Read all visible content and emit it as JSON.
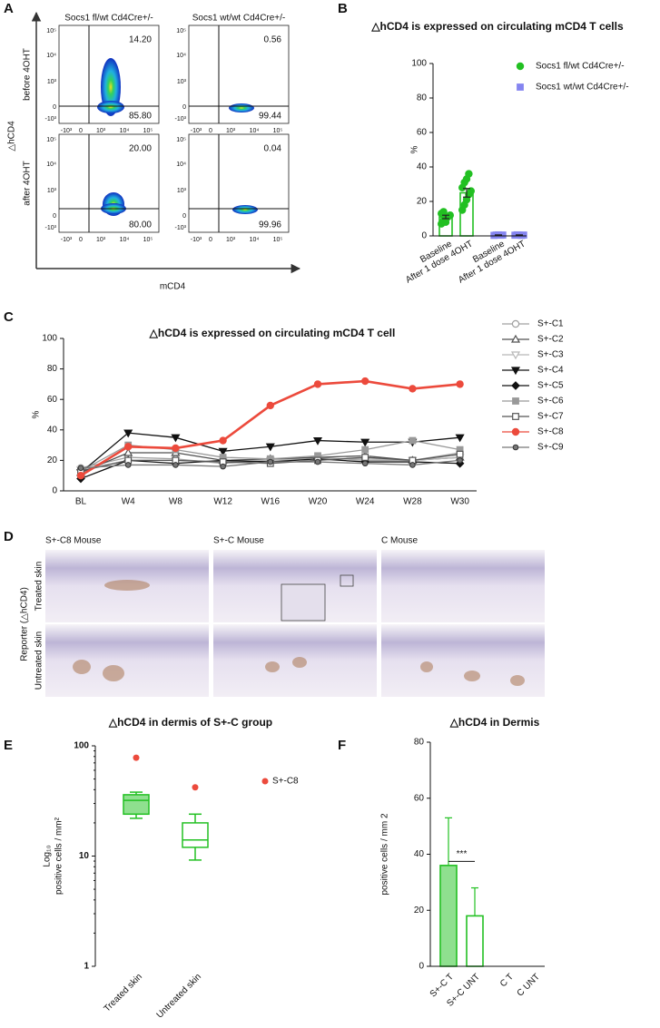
{
  "panel_letters": [
    "A",
    "B",
    "C",
    "D",
    "E",
    "F"
  ],
  "flow_panel": {
    "column_titles": [
      "Socs1 fl/wt Cd4Cre+/-",
      "Socs1 wt/wt Cd4Cre+/-"
    ],
    "row_labels": [
      "before 4OHT",
      "after 4OHT"
    ],
    "y_label": "△hCD4",
    "x_label": "mCD4",
    "axis_tick_labels": [
      "-10³",
      "0",
      "10³",
      "10⁴",
      "10⁵"
    ],
    "plots": [
      {
        "upper_right": "14.20",
        "lower_right": "85.80"
      },
      {
        "upper_right": "0.56",
        "lower_right": "99.44"
      },
      {
        "upper_right": "20.00",
        "lower_right": "80.00"
      },
      {
        "upper_right": "0.04",
        "lower_right": "99.96"
      }
    ]
  },
  "histology_panel": {
    "column_titles": [
      "S+-C8 Mouse",
      "S+-C Mouse",
      "C Mouse"
    ],
    "row_labels": [
      "Treated skin",
      "Untreated skin"
    ],
    "side_label": "Reporter (△hCD4)"
  },
  "chart_data": [
    {
      "type": "bar",
      "title": "△hCD4 is expressed on circulating mCD4 T cells",
      "ylabel": "%",
      "categories": [
        "Baseline",
        "After 1 dose 4OHT"
      ],
      "series": [
        {
          "name": "Socs1 fl/wt Cd4Cre+/-",
          "color": "#22c022",
          "marker": "circle",
          "values": [
            11,
            25
          ],
          "errors": [
            1,
            2.5
          ],
          "points": [
            [
              7,
              9,
              10,
              11,
              12,
              13,
              14,
              8
            ],
            [
              15,
              18,
              21,
              24,
              26,
              28,
              31,
              33,
              36
            ]
          ]
        },
        {
          "name": "Socs1 wt/wt Cd4Cre+/-",
          "color": "#8585f0",
          "marker": "square",
          "values": [
            0.5,
            0.5
          ],
          "errors": [
            0.1,
            0.1
          ],
          "points": [
            [
              0.3,
              0.5,
              0.6,
              0.4,
              0.5
            ],
            [
              0.4,
              0.6,
              0.5,
              0.3,
              0.5
            ]
          ]
        }
      ],
      "ylim": [
        0,
        100
      ],
      "yticks": [
        0,
        20,
        40,
        60,
        80,
        100
      ],
      "legend": "right"
    },
    {
      "type": "line",
      "title": "△hCD4 is expressed on circulating mCD4 T cell",
      "ylabel": "%",
      "categories": [
        "BL",
        "W4",
        "W8",
        "W12",
        "W16",
        "W20",
        "W24",
        "W28",
        "W30"
      ],
      "series": [
        {
          "name": "S+-C1",
          "color": "#a0a0a0",
          "marker": "circle-open",
          "values": [
            15,
            22,
            21,
            18,
            20,
            22,
            20,
            20,
            25
          ]
        },
        {
          "name": "S+-C2",
          "color": "#505050",
          "marker": "triangle-open",
          "values": [
            12,
            25,
            25,
            20,
            21,
            22,
            23,
            20,
            22
          ]
        },
        {
          "name": "S+-C3",
          "color": "#b8b8b8",
          "marker": "triangle-down-open",
          "values": [
            14,
            20,
            20,
            19,
            20,
            21,
            21,
            20,
            22
          ]
        },
        {
          "name": "S+-C4",
          "color": "#111111",
          "marker": "triangle-down",
          "values": [
            12,
            38,
            35,
            26,
            29,
            33,
            32,
            32,
            35
          ]
        },
        {
          "name": "S+-C5",
          "color": "#111111",
          "marker": "diamond",
          "values": [
            8,
            20,
            18,
            20,
            19,
            21,
            19,
            19,
            18
          ]
        },
        {
          "name": "S+-C6",
          "color": "#999999",
          "marker": "square",
          "values": [
            13,
            30,
            27,
            22,
            21,
            23,
            27,
            33,
            27
          ]
        },
        {
          "name": "S+-C7",
          "color": "#555555",
          "marker": "square-open",
          "values": [
            13,
            20,
            20,
            19,
            18,
            20,
            22,
            20,
            24
          ]
        },
        {
          "name": "S+-C8",
          "color": "#ec4a3c",
          "marker": "circle",
          "values": [
            10,
            29,
            28,
            33,
            56,
            70,
            72,
            67,
            70
          ]
        },
        {
          "name": "S+-C9",
          "color": "#777777",
          "marker": "circle-small",
          "values": [
            15,
            17,
            17,
            16,
            19,
            19,
            18,
            17,
            20
          ]
        }
      ],
      "ylim": [
        0,
        100
      ],
      "yticks": [
        0,
        20,
        40,
        60,
        80,
        100
      ],
      "legend": "right"
    },
    {
      "type": "box",
      "title": "△hCD4 in dermis of S+-C group",
      "ylabel": [
        "Log₁₀",
        "positive cells / mm²"
      ],
      "categories": [
        "Treated skin",
        "Untreated skin"
      ],
      "color": "#22c022",
      "box_fill": "#8fe08f",
      "boxes": [
        {
          "min": 22,
          "q1": 24,
          "median": 32,
          "q3": 36,
          "max": 38
        },
        {
          "min": 9.2,
          "q1": 12,
          "median": 14,
          "q3": 20,
          "max": 24
        }
      ],
      "outliers": [
        78,
        42
      ],
      "outlier_name": "S+-C8",
      "outlier_color": "#ec4a3c",
      "yscale": "log",
      "ylim": [
        1,
        100
      ],
      "yticks": [
        1,
        10,
        100
      ]
    },
    {
      "type": "bar",
      "title": "△hCD4 in Dermis",
      "ylabel": "positive cells / mm 2",
      "categories": [
        "S+-C T",
        "S+-C UNT",
        "C T",
        "C UNT"
      ],
      "values": [
        36,
        18,
        0,
        0
      ],
      "errors": [
        17,
        10,
        null,
        null
      ],
      "color": "#22c022",
      "fills": [
        "#8fe08f",
        "#ffffff",
        "#ffffff",
        "#ffffff"
      ],
      "annotation": "***",
      "ylim": [
        0,
        80
      ],
      "yticks": [
        0,
        20,
        40,
        60,
        80
      ]
    }
  ]
}
